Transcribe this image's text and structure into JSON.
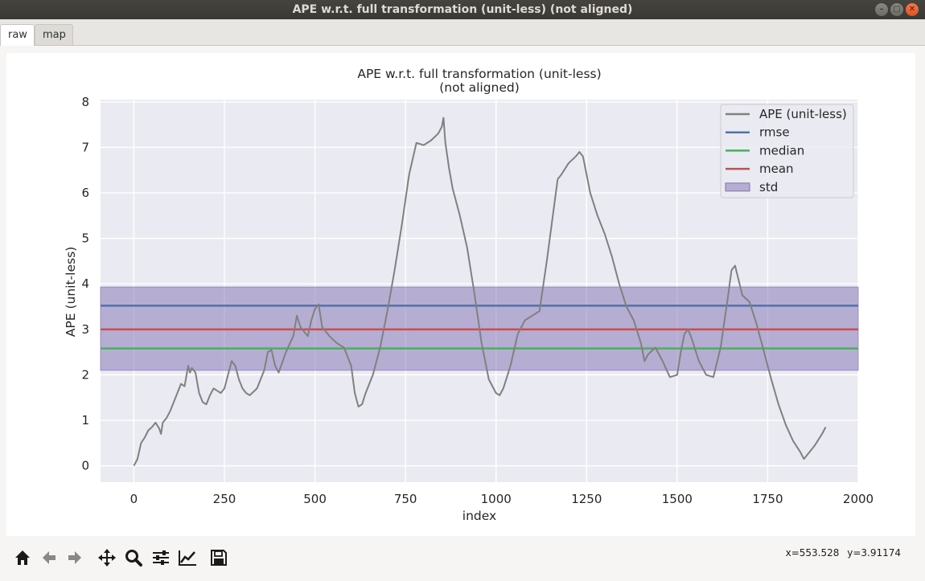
{
  "window": {
    "title": "APE w.r.t. full transformation (unit-less) (not aligned)",
    "minimize_icon": "minimize-icon",
    "maximize_icon": "maximize-icon",
    "close_icon": "close-icon"
  },
  "tabs": [
    {
      "label": "raw",
      "active": true
    },
    {
      "label": "map",
      "active": false
    }
  ],
  "chart_data": {
    "type": "line",
    "title": "APE w.r.t. full transformation (unit-less)",
    "subtitle": "(not aligned)",
    "xlabel": "index",
    "ylabel": "APE (unit-less)",
    "xlim": [
      -92,
      2000
    ],
    "ylim": [
      -0.36,
      8.05
    ],
    "xticks": [
      0,
      250,
      500,
      750,
      1000,
      1250,
      1500,
      1750,
      2000
    ],
    "yticks": [
      0,
      1,
      2,
      3,
      4,
      5,
      6,
      7,
      8
    ],
    "grid": true,
    "background": "#eaeaf2",
    "legend_position": "top-right",
    "legend": [
      {
        "label": "APE (unit-less)",
        "color": "#808080",
        "kind": "line"
      },
      {
        "label": "rmse",
        "color": "#4c72b0",
        "kind": "line"
      },
      {
        "label": "median",
        "color": "#55a868",
        "kind": "line"
      },
      {
        "label": "mean",
        "color": "#c44e52",
        "kind": "line"
      },
      {
        "label": "std",
        "color": "#8172b2",
        "kind": "band"
      }
    ],
    "series": [
      {
        "name": "APE (unit-less)",
        "color": "#808080",
        "x": [
          0,
          10,
          20,
          30,
          40,
          50,
          60,
          70,
          75,
          80,
          90,
          100,
          110,
          120,
          130,
          140,
          150,
          155,
          160,
          170,
          180,
          190,
          200,
          210,
          220,
          230,
          240,
          250,
          260,
          270,
          280,
          290,
          300,
          310,
          320,
          340,
          360,
          370,
          380,
          390,
          400,
          420,
          440,
          450,
          460,
          470,
          480,
          490,
          500,
          510,
          520,
          540,
          560,
          580,
          600,
          610,
          620,
          630,
          640,
          660,
          680,
          700,
          720,
          740,
          760,
          780,
          800,
          820,
          840,
          850,
          855,
          860,
          870,
          880,
          900,
          920,
          940,
          960,
          980,
          1000,
          1010,
          1020,
          1040,
          1060,
          1080,
          1100,
          1120,
          1140,
          1160,
          1170,
          1180,
          1200,
          1220,
          1230,
          1240,
          1260,
          1280,
          1300,
          1320,
          1340,
          1360,
          1380,
          1400,
          1410,
          1420,
          1440,
          1460,
          1480,
          1500,
          1510,
          1520,
          1530,
          1540,
          1560,
          1580,
          1600,
          1620,
          1640,
          1650,
          1660,
          1680,
          1700,
          1720,
          1740,
          1760,
          1780,
          1800,
          1820,
          1840,
          1850,
          1860,
          1880,
          1900,
          1910
        ],
        "values": [
          0.0,
          0.15,
          0.5,
          0.62,
          0.78,
          0.85,
          0.95,
          0.82,
          0.7,
          0.95,
          1.05,
          1.2,
          1.4,
          1.6,
          1.8,
          1.75,
          2.2,
          2.05,
          2.15,
          2.05,
          1.6,
          1.4,
          1.35,
          1.55,
          1.7,
          1.65,
          1.6,
          1.7,
          2.0,
          2.3,
          2.2,
          1.9,
          1.7,
          1.6,
          1.55,
          1.7,
          2.1,
          2.5,
          2.55,
          2.2,
          2.05,
          2.5,
          2.85,
          3.3,
          3.05,
          2.95,
          2.85,
          3.2,
          3.45,
          3.55,
          3.05,
          2.85,
          2.7,
          2.6,
          2.2,
          1.6,
          1.3,
          1.35,
          1.6,
          2.0,
          2.6,
          3.4,
          4.3,
          5.3,
          6.4,
          7.1,
          7.05,
          7.15,
          7.3,
          7.45,
          7.65,
          7.1,
          6.55,
          6.1,
          5.5,
          4.8,
          3.8,
          2.7,
          1.9,
          1.6,
          1.55,
          1.7,
          2.2,
          2.9,
          3.2,
          3.3,
          3.4,
          4.5,
          5.7,
          6.3,
          6.4,
          6.65,
          6.8,
          6.9,
          6.8,
          6.0,
          5.5,
          5.1,
          4.6,
          4.0,
          3.5,
          3.2,
          2.7,
          2.3,
          2.45,
          2.6,
          2.3,
          1.95,
          2.0,
          2.5,
          2.9,
          3.0,
          2.8,
          2.3,
          2.0,
          1.95,
          2.6,
          3.7,
          4.3,
          4.4,
          3.75,
          3.6,
          3.1,
          2.5,
          1.9,
          1.35,
          0.9,
          0.55,
          0.3,
          0.15,
          0.25,
          0.45,
          0.7,
          0.85
        ]
      }
    ],
    "stats": {
      "rmse": 3.52,
      "median": 2.58,
      "mean": 3.0,
      "std_low": 2.1,
      "std_high": 3.93
    }
  },
  "toolbar": [
    {
      "name": "home-button",
      "icon": "home-icon"
    },
    {
      "name": "back-button",
      "icon": "arrow-left-icon"
    },
    {
      "name": "forward-button",
      "icon": "arrow-right-icon"
    },
    {
      "name": "pan-button",
      "icon": "move-icon"
    },
    {
      "name": "zoom-button",
      "icon": "magnifier-icon"
    },
    {
      "name": "configure-subplots-button",
      "icon": "sliders-icon"
    },
    {
      "name": "edit-axes-button",
      "icon": "line-chart-icon"
    },
    {
      "name": "save-button",
      "icon": "floppy-icon"
    }
  ],
  "status": {
    "x_readout": "x=553.528",
    "y_readout": "y=3.91174"
  }
}
